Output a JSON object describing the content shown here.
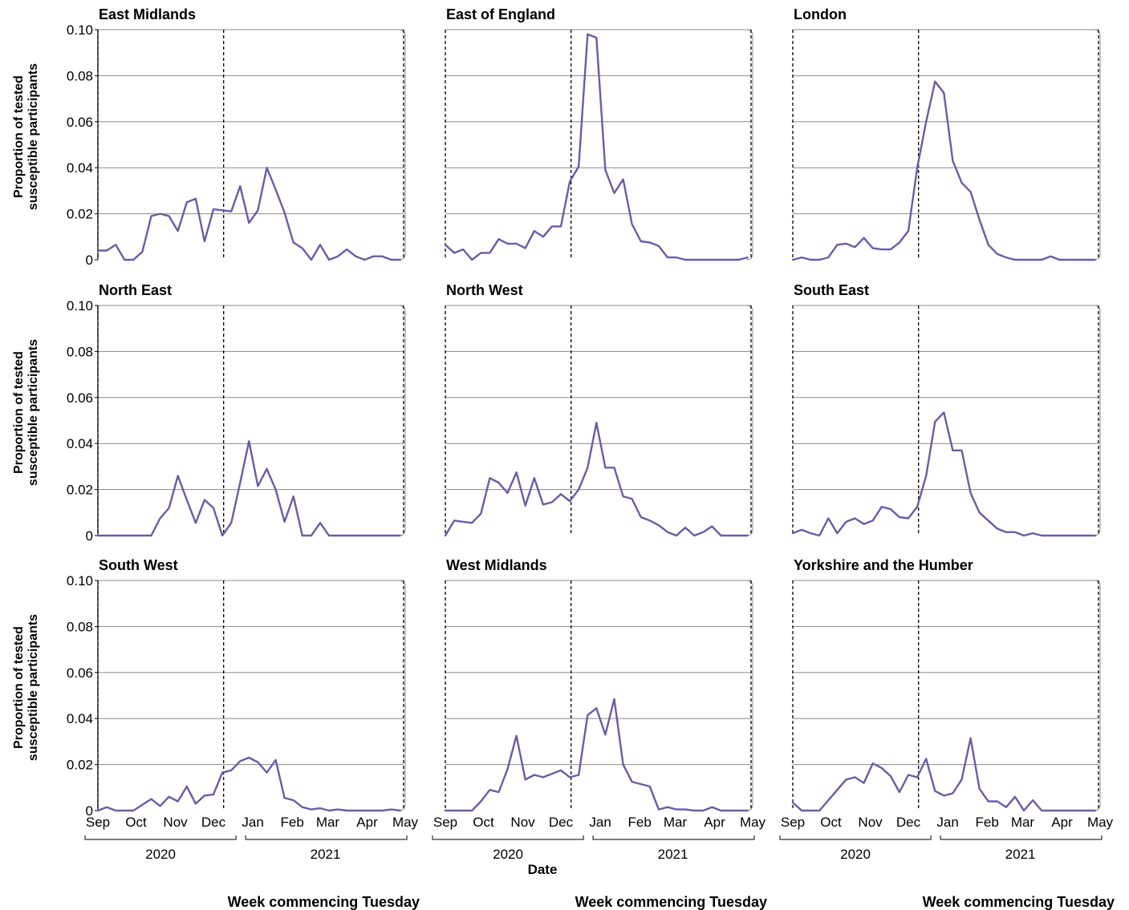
{
  "x_axis_label": "Date",
  "y_axis_label_line1": "Proportion of tested",
  "y_axis_label_line2": "susceptible participants",
  "week_label": "Week commencing Tuesday",
  "month_ticks": [
    "Sep",
    "Oct",
    "Nov",
    "Dec",
    "Jan",
    "Feb",
    "Mar",
    "Apr",
    "May"
  ],
  "years": [
    "2020",
    "2021"
  ],
  "y_tick_labels": [
    "0",
    "0.02",
    "0.04",
    "0.06",
    "0.08",
    "0.10"
  ],
  "line_color": "#6b5ca5",
  "chart_data": {
    "type": "line",
    "ylim": [
      0,
      0.1
    ],
    "y_ticks": [
      0,
      0.02,
      0.04,
      0.06,
      0.08,
      0.1
    ],
    "x_range": [
      "2020-09-01",
      "2021-05-01"
    ],
    "x_ticks": [
      "2020-09-01",
      "2020-10-01",
      "2020-11-01",
      "2020-12-01",
      "2021-01-01",
      "2021-02-01",
      "2021-03-01",
      "2021-04-01",
      "2021-05-01"
    ],
    "x_ticklabels": [
      "Sep",
      "Oct",
      "Nov",
      "Dec",
      "Jan",
      "Feb",
      "Mar",
      "Apr",
      "May"
    ],
    "xlabel": "Date",
    "ylabel": "Proportion of tested susceptible participants",
    "vertical_dashed_lines": [
      "2020-09-01",
      "2020-12-09",
      "2021-05-01"
    ],
    "grid": "horizontal",
    "panels": [
      {
        "title": "East Midlands",
        "x": [
          "2020-09-01",
          "2020-09-08",
          "2020-09-15",
          "2020-09-22",
          "2020-09-29",
          "2020-10-06",
          "2020-10-13",
          "2020-10-20",
          "2020-10-27",
          "2020-11-03",
          "2020-11-10",
          "2020-11-17",
          "2020-11-24",
          "2020-12-01",
          "2020-12-08",
          "2020-12-15",
          "2020-12-22",
          "2020-12-29",
          "2021-01-05",
          "2021-01-12",
          "2021-01-19",
          "2021-01-26",
          "2021-02-02",
          "2021-02-09",
          "2021-02-16",
          "2021-02-23",
          "2021-03-02",
          "2021-03-09",
          "2021-03-16",
          "2021-03-23",
          "2021-03-30",
          "2021-04-06",
          "2021-04-13",
          "2021-04-20",
          "2021-04-27"
        ],
        "y": [
          0.004,
          0.004,
          0.0065,
          0.0,
          0.0,
          0.0035,
          0.019,
          0.02,
          0.019,
          0.0125,
          0.025,
          0.0265,
          0.008,
          0.022,
          0.0215,
          0.021,
          0.032,
          0.016,
          0.0215,
          0.04,
          0.0305,
          0.0205,
          0.0075,
          0.005,
          0.0,
          0.0065,
          0.0,
          0.0015,
          0.0045,
          0.0015,
          0.0,
          0.0015,
          0.0015,
          0.0,
          0.0
        ]
      },
      {
        "title": "East of England",
        "x": [
          "2020-09-01",
          "2020-09-08",
          "2020-09-15",
          "2020-09-22",
          "2020-09-29",
          "2020-10-06",
          "2020-10-13",
          "2020-10-20",
          "2020-10-27",
          "2020-11-03",
          "2020-11-10",
          "2020-11-17",
          "2020-11-24",
          "2020-12-01",
          "2020-12-08",
          "2020-12-15",
          "2020-12-22",
          "2020-12-29",
          "2021-01-05",
          "2021-01-12",
          "2021-01-19",
          "2021-01-26",
          "2021-02-02",
          "2021-02-09",
          "2021-02-16",
          "2021-02-23",
          "2021-03-02",
          "2021-03-09",
          "2021-03-16",
          "2021-03-23",
          "2021-03-30",
          "2021-04-06",
          "2021-04-13",
          "2021-04-20",
          "2021-04-27"
        ],
        "y": [
          0.0065,
          0.003,
          0.0045,
          0.0,
          0.003,
          0.003,
          0.009,
          0.007,
          0.007,
          0.005,
          0.0125,
          0.01,
          0.0145,
          0.0145,
          0.034,
          0.0405,
          0.098,
          0.0965,
          0.039,
          0.029,
          0.035,
          0.0155,
          0.008,
          0.0075,
          0.006,
          0.001,
          0.001,
          0.0,
          0.0,
          0.0,
          0.0,
          0.0,
          0.0,
          0.0,
          0.001
        ]
      },
      {
        "title": "London",
        "x": [
          "2020-09-01",
          "2020-09-08",
          "2020-09-15",
          "2020-09-22",
          "2020-09-29",
          "2020-10-06",
          "2020-10-13",
          "2020-10-20",
          "2020-10-27",
          "2020-11-03",
          "2020-11-10",
          "2020-11-17",
          "2020-11-24",
          "2020-12-01",
          "2020-12-08",
          "2020-12-15",
          "2020-12-22",
          "2020-12-29",
          "2021-01-05",
          "2021-01-12",
          "2021-01-19",
          "2021-01-26",
          "2021-02-02",
          "2021-02-09",
          "2021-02-16",
          "2021-02-23",
          "2021-03-02",
          "2021-03-09",
          "2021-03-16",
          "2021-03-23",
          "2021-03-30",
          "2021-04-06",
          "2021-04-13",
          "2021-04-20",
          "2021-04-27"
        ],
        "y": [
          0.0,
          0.001,
          0.0,
          0.0,
          0.001,
          0.0065,
          0.007,
          0.0055,
          0.0095,
          0.005,
          0.0045,
          0.0045,
          0.0075,
          0.0125,
          0.04,
          0.06,
          0.0775,
          0.0725,
          0.043,
          0.0335,
          0.0295,
          0.0175,
          0.0065,
          0.0025,
          0.001,
          0.0,
          0.0,
          0.0,
          0.0,
          0.0015,
          0.0,
          0.0,
          0.0,
          0.0,
          0.0
        ]
      },
      {
        "title": "North East",
        "x": [
          "2020-09-01",
          "2020-09-08",
          "2020-09-15",
          "2020-09-22",
          "2020-09-29",
          "2020-10-06",
          "2020-10-13",
          "2020-10-20",
          "2020-10-27",
          "2020-11-03",
          "2020-11-10",
          "2020-11-17",
          "2020-11-24",
          "2020-12-01",
          "2020-12-08",
          "2020-12-15",
          "2020-12-22",
          "2020-12-29",
          "2021-01-05",
          "2021-01-12",
          "2021-01-19",
          "2021-01-26",
          "2021-02-02",
          "2021-02-09",
          "2021-02-16",
          "2021-02-23",
          "2021-03-02",
          "2021-03-09",
          "2021-03-16",
          "2021-03-23",
          "2021-03-30",
          "2021-04-06",
          "2021-04-13",
          "2021-04-20",
          "2021-04-27"
        ],
        "y": [
          0.0,
          0.0,
          0.0,
          0.0,
          0.0,
          0.0,
          0.0,
          0.0075,
          0.012,
          0.026,
          0.0155,
          0.0055,
          0.0155,
          0.012,
          0.0,
          0.0055,
          0.023,
          0.041,
          0.0215,
          0.029,
          0.02,
          0.006,
          0.017,
          0.0,
          0.0,
          0.0055,
          0.0,
          0.0,
          0.0,
          0.0,
          0.0,
          0.0,
          0.0,
          0.0,
          0.0
        ]
      },
      {
        "title": "North West",
        "x": [
          "2020-09-01",
          "2020-09-08",
          "2020-09-15",
          "2020-09-22",
          "2020-09-29",
          "2020-10-06",
          "2020-10-13",
          "2020-10-20",
          "2020-10-27",
          "2020-11-03",
          "2020-11-10",
          "2020-11-17",
          "2020-11-24",
          "2020-12-01",
          "2020-12-08",
          "2020-12-15",
          "2020-12-22",
          "2020-12-29",
          "2021-01-05",
          "2021-01-12",
          "2021-01-19",
          "2021-01-26",
          "2021-02-02",
          "2021-02-09",
          "2021-02-16",
          "2021-02-23",
          "2021-03-02",
          "2021-03-09",
          "2021-03-16",
          "2021-03-23",
          "2021-03-30",
          "2021-04-06",
          "2021-04-13",
          "2021-04-20",
          "2021-04-27"
        ],
        "y": [
          0.0,
          0.0065,
          0.006,
          0.0055,
          0.0095,
          0.025,
          0.023,
          0.0185,
          0.0275,
          0.013,
          0.025,
          0.0135,
          0.0145,
          0.018,
          0.015,
          0.02,
          0.0295,
          0.049,
          0.0295,
          0.0295,
          0.017,
          0.016,
          0.008,
          0.0065,
          0.0045,
          0.0015,
          0.0,
          0.0035,
          0.0,
          0.0015,
          0.004,
          0.0,
          0.0,
          0.0,
          0.0
        ]
      },
      {
        "title": "South East",
        "x": [
          "2020-09-01",
          "2020-09-08",
          "2020-09-15",
          "2020-09-22",
          "2020-09-29",
          "2020-10-06",
          "2020-10-13",
          "2020-10-20",
          "2020-10-27",
          "2020-11-03",
          "2020-11-10",
          "2020-11-17",
          "2020-11-24",
          "2020-12-01",
          "2020-12-08",
          "2020-12-15",
          "2020-12-22",
          "2020-12-29",
          "2021-01-05",
          "2021-01-12",
          "2021-01-19",
          "2021-01-26",
          "2021-02-02",
          "2021-02-09",
          "2021-02-16",
          "2021-02-23",
          "2021-03-02",
          "2021-03-09",
          "2021-03-16",
          "2021-03-23",
          "2021-03-30",
          "2021-04-06",
          "2021-04-13",
          "2021-04-20",
          "2021-04-27"
        ],
        "y": [
          0.001,
          0.0025,
          0.001,
          0.0,
          0.0075,
          0.001,
          0.006,
          0.0075,
          0.005,
          0.0065,
          0.0125,
          0.0115,
          0.008,
          0.0075,
          0.0125,
          0.026,
          0.0495,
          0.0535,
          0.037,
          0.037,
          0.0185,
          0.01,
          0.0065,
          0.003,
          0.0015,
          0.0015,
          0.0,
          0.001,
          0.0,
          0.0,
          0.0,
          0.0,
          0.0,
          0.0,
          0.0
        ]
      },
      {
        "title": "South West",
        "x": [
          "2020-09-01",
          "2020-09-08",
          "2020-09-15",
          "2020-09-22",
          "2020-09-29",
          "2020-10-06",
          "2020-10-13",
          "2020-10-20",
          "2020-10-27",
          "2020-11-03",
          "2020-11-10",
          "2020-11-17",
          "2020-11-24",
          "2020-12-01",
          "2020-12-08",
          "2020-12-15",
          "2020-12-22",
          "2020-12-29",
          "2021-01-05",
          "2021-01-12",
          "2021-01-19",
          "2021-01-26",
          "2021-02-02",
          "2021-02-09",
          "2021-02-16",
          "2021-02-23",
          "2021-03-02",
          "2021-03-09",
          "2021-03-16",
          "2021-03-23",
          "2021-03-30",
          "2021-04-06",
          "2021-04-13",
          "2021-04-20",
          "2021-04-27"
        ],
        "y": [
          0.0,
          0.0015,
          0.0,
          0.0,
          0.0,
          0.0025,
          0.005,
          0.002,
          0.006,
          0.004,
          0.0105,
          0.003,
          0.0065,
          0.007,
          0.0165,
          0.0175,
          0.0215,
          0.023,
          0.021,
          0.0165,
          0.022,
          0.0055,
          0.0045,
          0.0015,
          0.0005,
          0.001,
          0.0,
          0.0005,
          0.0,
          0.0,
          0.0,
          0.0,
          0.0,
          0.0005,
          0.0
        ]
      },
      {
        "title": "West Midlands",
        "x": [
          "2020-09-01",
          "2020-09-08",
          "2020-09-15",
          "2020-09-22",
          "2020-09-29",
          "2020-10-06",
          "2020-10-13",
          "2020-10-20",
          "2020-10-27",
          "2020-11-03",
          "2020-11-10",
          "2020-11-17",
          "2020-11-24",
          "2020-12-01",
          "2020-12-08",
          "2020-12-15",
          "2020-12-22",
          "2020-12-29",
          "2021-01-05",
          "2021-01-12",
          "2021-01-19",
          "2021-01-26",
          "2021-02-02",
          "2021-02-09",
          "2021-02-16",
          "2021-02-23",
          "2021-03-02",
          "2021-03-09",
          "2021-03-16",
          "2021-03-23",
          "2021-03-30",
          "2021-04-06",
          "2021-04-13",
          "2021-04-20",
          "2021-04-27"
        ],
        "y": [
          0.0,
          0.0,
          0.0,
          0.0,
          0.004,
          0.009,
          0.008,
          0.018,
          0.0325,
          0.0135,
          0.0155,
          0.0145,
          0.016,
          0.0175,
          0.0145,
          0.0155,
          0.0415,
          0.0445,
          0.033,
          0.0485,
          0.02,
          0.0125,
          0.0115,
          0.0105,
          0.0005,
          0.0015,
          0.0005,
          0.0005,
          0.0,
          0.0,
          0.0015,
          0.0,
          0.0,
          0.0,
          0.0
        ]
      },
      {
        "title": "Yorkshire and the Humber",
        "x": [
          "2020-09-01",
          "2020-09-08",
          "2020-09-15",
          "2020-09-22",
          "2020-09-29",
          "2020-10-06",
          "2020-10-13",
          "2020-10-20",
          "2020-10-27",
          "2020-11-03",
          "2020-11-10",
          "2020-11-17",
          "2020-11-24",
          "2020-12-01",
          "2020-12-08",
          "2020-12-15",
          "2020-12-22",
          "2020-12-29",
          "2021-01-05",
          "2021-01-12",
          "2021-01-19",
          "2021-01-26",
          "2021-02-02",
          "2021-02-09",
          "2021-02-16",
          "2021-02-23",
          "2021-03-02",
          "2021-03-09",
          "2021-03-16",
          "2021-03-23",
          "2021-03-30",
          "2021-04-06",
          "2021-04-13",
          "2021-04-20",
          "2021-04-27"
        ],
        "y": [
          0.0035,
          0.0,
          0.0,
          0.0,
          0.0045,
          0.009,
          0.0135,
          0.0145,
          0.012,
          0.0205,
          0.0185,
          0.015,
          0.008,
          0.0155,
          0.0145,
          0.0225,
          0.0085,
          0.0065,
          0.0075,
          0.0135,
          0.0315,
          0.0095,
          0.004,
          0.004,
          0.0015,
          0.006,
          0.0,
          0.0045,
          0.0,
          0.0,
          0.0,
          0.0,
          0.0,
          0.0,
          0.0
        ]
      }
    ]
  }
}
